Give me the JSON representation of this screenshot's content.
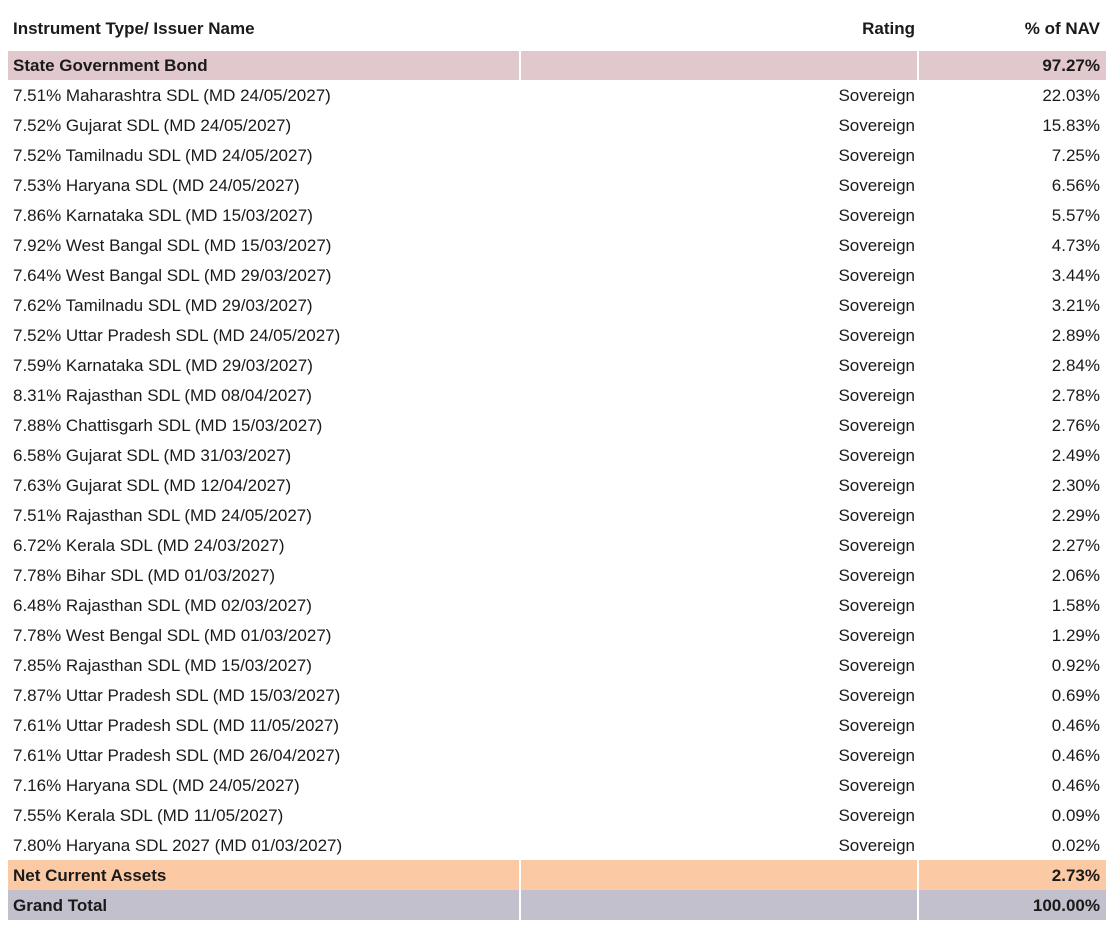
{
  "table": {
    "columns": [
      "Instrument Type/ Issuer Name",
      "Rating",
      "% of NAV"
    ],
    "sections": [
      {
        "name": "State Government Bond",
        "rating": "",
        "nav": "97.27%",
        "rows": [
          {
            "name": "7.51% Maharashtra SDL (MD 24/05/2027)",
            "rating": "Sovereign",
            "nav": "22.03%"
          },
          {
            "name": "7.52% Gujarat SDL (MD 24/05/2027)",
            "rating": "Sovereign",
            "nav": "15.83%"
          },
          {
            "name": "7.52% Tamilnadu SDL (MD 24/05/2027)",
            "rating": "Sovereign",
            "nav": "7.25%"
          },
          {
            "name": "7.53% Haryana SDL (MD 24/05/2027)",
            "rating": "Sovereign",
            "nav": "6.56%"
          },
          {
            "name": "7.86% Karnataka SDL (MD 15/03/2027)",
            "rating": "Sovereign",
            "nav": "5.57%"
          },
          {
            "name": "7.92% West Bangal SDL (MD 15/03/2027)",
            "rating": "Sovereign",
            "nav": "4.73%"
          },
          {
            "name": "7.64% West Bangal SDL (MD 29/03/2027)",
            "rating": "Sovereign",
            "nav": "3.44%"
          },
          {
            "name": "7.62% Tamilnadu SDL (MD 29/03/2027)",
            "rating": "Sovereign",
            "nav": "3.21%"
          },
          {
            "name": "7.52% Uttar Pradesh SDL (MD 24/05/2027)",
            "rating": "Sovereign",
            "nav": "2.89%"
          },
          {
            "name": "7.59% Karnataka SDL (MD 29/03/2027)",
            "rating": "Sovereign",
            "nav": "2.84%"
          },
          {
            "name": "8.31% Rajasthan SDL (MD 08/04/2027)",
            "rating": "Sovereign",
            "nav": "2.78%"
          },
          {
            "name": "7.88% Chattisgarh SDL (MD 15/03/2027)",
            "rating": "Sovereign",
            "nav": "2.76%"
          },
          {
            "name": "6.58% Gujarat SDL (MD 31/03/2027)",
            "rating": "Sovereign",
            "nav": "2.49%"
          },
          {
            "name": "7.63% Gujarat SDL (MD 12/04/2027)",
            "rating": "Sovereign",
            "nav": "2.30%"
          },
          {
            "name": "7.51% Rajasthan SDL (MD 24/05/2027)",
            "rating": "Sovereign",
            "nav": "2.29%"
          },
          {
            "name": "6.72% Kerala SDL (MD 24/03/2027)",
            "rating": "Sovereign",
            "nav": "2.27%"
          },
          {
            "name": "7.78% Bihar SDL (MD 01/03/2027)",
            "rating": "Sovereign",
            "nav": "2.06%"
          },
          {
            "name": "6.48% Rajasthan SDL (MD 02/03/2027)",
            "rating": "Sovereign",
            "nav": "1.58%"
          },
          {
            "name": "7.78% West Bengal SDL (MD 01/03/2027)",
            "rating": "Sovereign",
            "nav": "1.29%"
          },
          {
            "name": "7.85% Rajasthan SDL (MD 15/03/2027)",
            "rating": "Sovereign",
            "nav": "0.92%"
          },
          {
            "name": "7.87% Uttar Pradesh SDL (MD 15/03/2027)",
            "rating": "Sovereign",
            "nav": "0.69%"
          },
          {
            "name": "7.61% Uttar Pradesh SDL (MD 11/05/2027)",
            "rating": "Sovereign",
            "nav": "0.46%"
          },
          {
            "name": "7.61% Uttar Pradesh SDL (MD 26/04/2027)",
            "rating": "Sovereign",
            "nav": "0.46%"
          },
          {
            "name": "7.16% Haryana SDL (MD 24/05/2027)",
            "rating": "Sovereign",
            "nav": "0.46%"
          },
          {
            "name": "7.55% Kerala SDL (MD 11/05/2027)",
            "rating": "Sovereign",
            "nav": "0.09%"
          },
          {
            "name": "7.80% Haryana SDL 2027 (MD 01/03/2027)",
            "rating": "Sovereign",
            "nav": "0.02%"
          }
        ]
      }
    ],
    "footer": [
      {
        "name": "Net Current Assets",
        "rating": "",
        "nav": "2.73%"
      },
      {
        "name": "Grand Total",
        "rating": "",
        "nav": "100.00%"
      }
    ],
    "colors": {
      "section_bg": "#e1c8cd",
      "net_assets_bg": "#fbc9a3",
      "grand_total_bg": "#c1c0cc",
      "text": "#1a1a1a"
    }
  }
}
